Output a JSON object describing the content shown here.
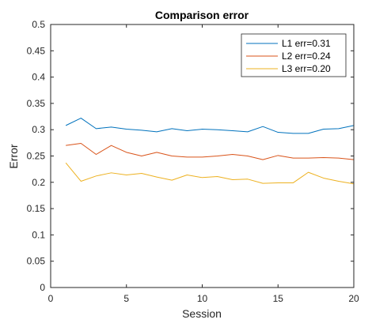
{
  "chart_data": {
    "type": "line",
    "title": "Comparison error",
    "xlabel": "Session",
    "ylabel": "Error",
    "xlim": [
      0,
      20
    ],
    "ylim": [
      0,
      0.5
    ],
    "xticks": [
      "0",
      "5",
      "10",
      "15",
      "20"
    ],
    "yticks": [
      "0",
      "0.05",
      "0.1",
      "0.15",
      "0.2",
      "0.25",
      "0.3",
      "0.35",
      "0.4",
      "0.45",
      "0.5"
    ],
    "grid": false,
    "legend_position": "top-right",
    "x": [
      1,
      2,
      3,
      4,
      5,
      6,
      7,
      8,
      9,
      10,
      11,
      12,
      13,
      14,
      15,
      16,
      17,
      18,
      19,
      20
    ],
    "series": [
      {
        "name": "L1 err=0.31",
        "color": "#0072BD",
        "values": [
          0.308,
          0.322,
          0.302,
          0.305,
          0.301,
          0.299,
          0.296,
          0.302,
          0.298,
          0.301,
          0.3,
          0.298,
          0.296,
          0.306,
          0.295,
          0.293,
          0.293,
          0.301,
          0.302,
          0.308
        ]
      },
      {
        "name": "L2 err=0.24",
        "color": "#D95319",
        "values": [
          0.27,
          0.274,
          0.253,
          0.27,
          0.257,
          0.25,
          0.257,
          0.25,
          0.248,
          0.248,
          0.25,
          0.253,
          0.25,
          0.243,
          0.251,
          0.246,
          0.246,
          0.247,
          0.246,
          0.243
        ]
      },
      {
        "name": "L3 err=0.20",
        "color": "#EDB120",
        "values": [
          0.237,
          0.202,
          0.212,
          0.218,
          0.214,
          0.217,
          0.21,
          0.204,
          0.214,
          0.209,
          0.211,
          0.205,
          0.206,
          0.198,
          0.199,
          0.199,
          0.219,
          0.208,
          0.202,
          0.197
        ]
      }
    ]
  }
}
